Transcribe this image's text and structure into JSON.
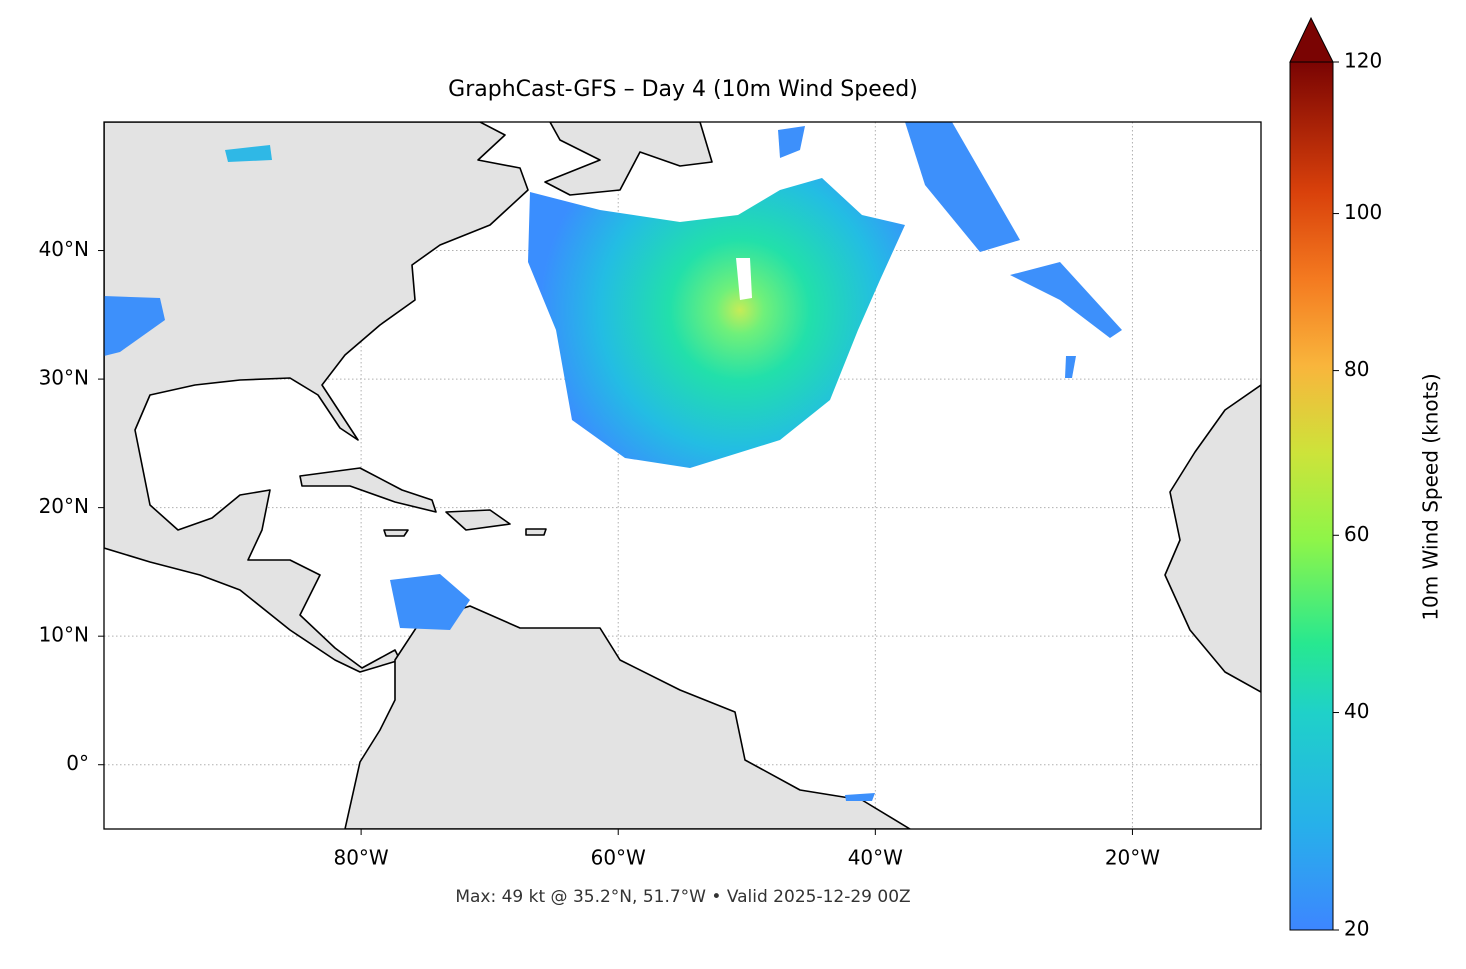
{
  "title": "GraphCast-GFS – Day 4 (10m Wind Speed)",
  "footnote": "Max: 49 kt @ 35.2°N, 51.7°W • Valid 2025-12-29 00Z",
  "map": {
    "xlim": [
      -100,
      -10
    ],
    "ylim": [
      -5,
      50
    ],
    "xticks": [
      {
        "value": -80,
        "label": "80°W"
      },
      {
        "value": -60,
        "label": "60°W"
      },
      {
        "value": -40,
        "label": "40°W"
      },
      {
        "value": -20,
        "label": "20°W"
      }
    ],
    "yticks": [
      {
        "value": 0,
        "label": "0°"
      },
      {
        "value": 10,
        "label": "10°N"
      },
      {
        "value": 20,
        "label": "20°N"
      },
      {
        "value": 30,
        "label": "30°N"
      },
      {
        "value": 40,
        "label": "40°N"
      }
    ],
    "grid": true
  },
  "colorbar": {
    "label": "10m Wind Speed (knots)",
    "lim": [
      20,
      120
    ],
    "ticks": [
      20,
      40,
      60,
      80,
      100,
      120
    ],
    "norm": "power",
    "gamma": 0.86
  }
}
